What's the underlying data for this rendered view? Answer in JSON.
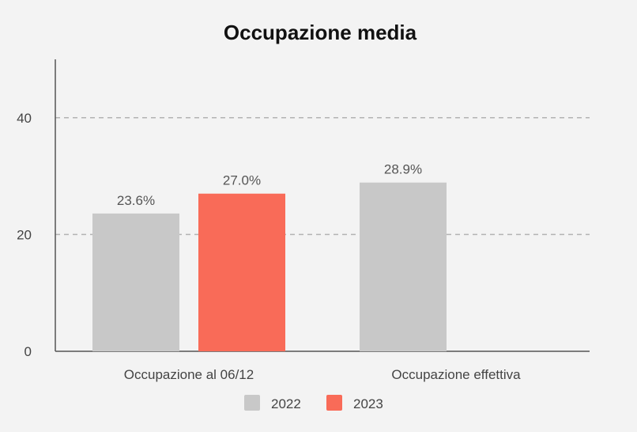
{
  "chart_data": {
    "type": "bar",
    "title": "Occupazione media",
    "xlabel": "",
    "ylabel": "",
    "categories": [
      "Occupazione al 06/12",
      "Occupazione effettiva"
    ],
    "series": [
      {
        "name": "2022",
        "values": [
          23.6,
          28.9
        ],
        "labels": [
          "23.6%",
          "28.9%"
        ],
        "color": "#c8c8c8"
      },
      {
        "name": "2023",
        "values": [
          27.0,
          null
        ],
        "labels": [
          "27.0%",
          null
        ],
        "color": "#f96b58"
      }
    ],
    "ylim": [
      0,
      50
    ],
    "yticks": [
      0,
      20,
      40
    ],
    "grid": "horizontal-dashed",
    "legend": "bottom-center"
  }
}
